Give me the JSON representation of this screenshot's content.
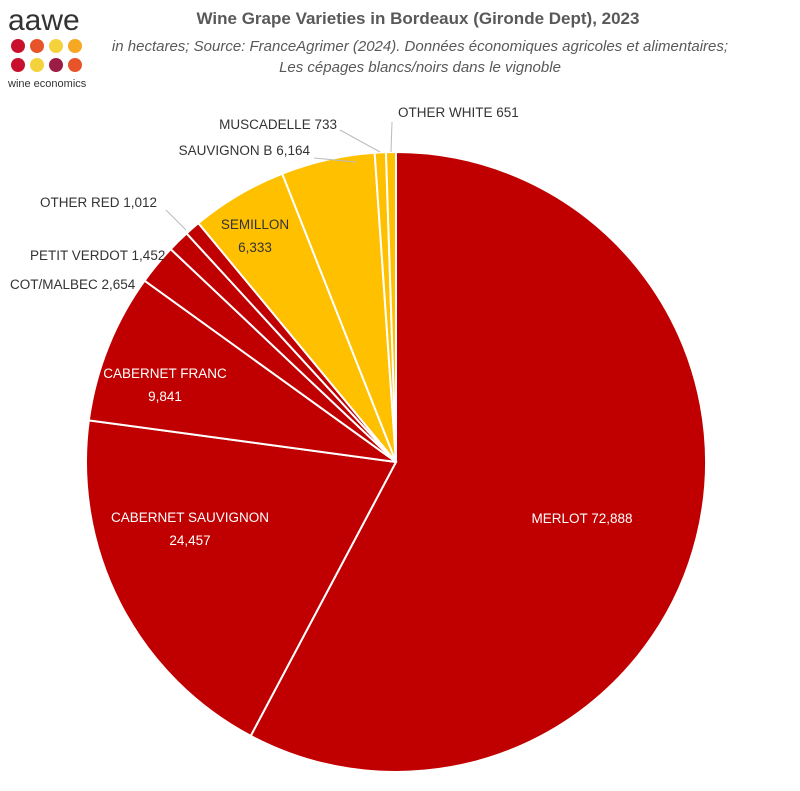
{
  "logo": {
    "name": "aawe",
    "tagline": "wine economics"
  },
  "chart_data": {
    "type": "pie",
    "title": "Wine Grape Varieties in Bordeaux (Gironde Dept), 2023",
    "subtitle": "in hectares; Source: FranceAgrimer (2024). Données économiques agricoles et alimentaires; Les cépages blancs/noirs dans le vignoble",
    "categories": [
      "MERLOT",
      "CABERNET SAUVIGNON",
      "CABERNET FRANC",
      "COT/MALBEC",
      "PETIT VERDOT",
      "OTHER RED",
      "SEMILLON",
      "SAUVIGNON B",
      "MUSCADELLE",
      "OTHER WHITE"
    ],
    "values": [
      72888,
      24457,
      9841,
      2654,
      1452,
      1012,
      6333,
      6164,
      733,
      651
    ],
    "value_labels": [
      "72,888",
      "24,457",
      "9,841",
      "2,654",
      "1,452",
      "1,012",
      "6,333",
      "6,164",
      "733",
      "651"
    ],
    "colors": [
      "#c00000",
      "#c00000",
      "#c00000",
      "#c00000",
      "#c00000",
      "#c00000",
      "#ffc000",
      "#ffc000",
      "#ffc000",
      "#ffc000"
    ]
  }
}
